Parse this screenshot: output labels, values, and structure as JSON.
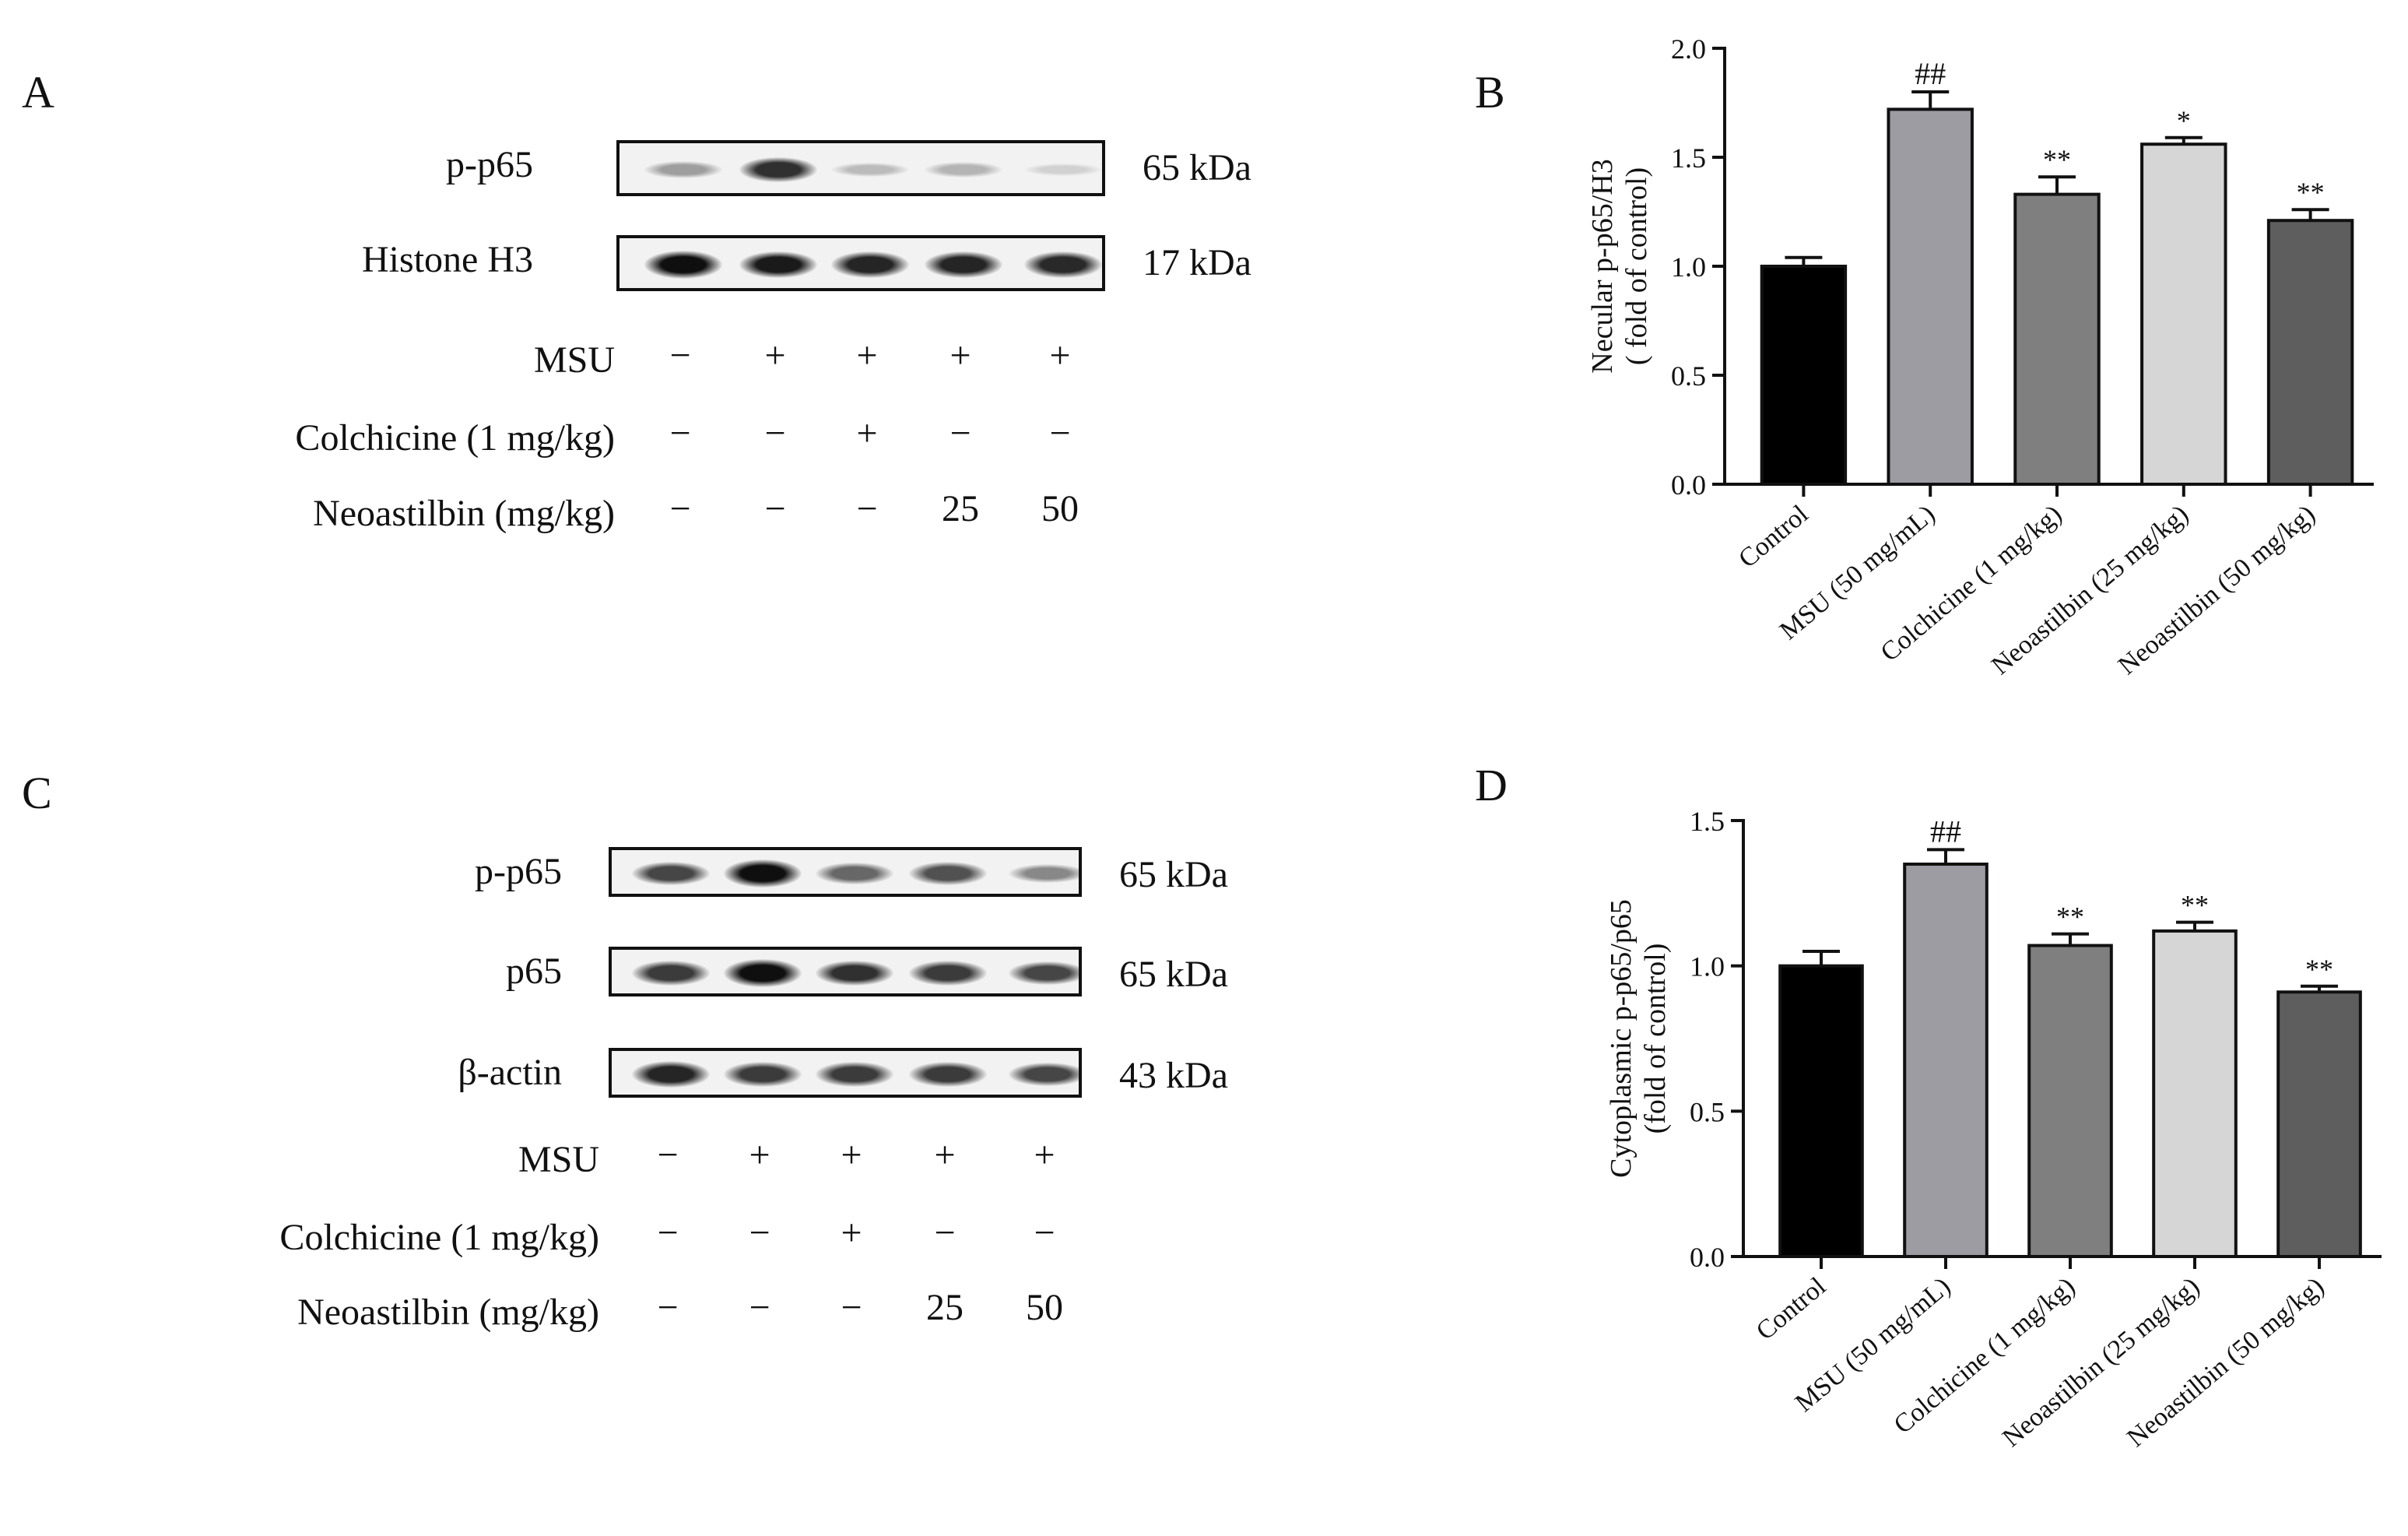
{
  "panels": {
    "A": {
      "letter": "A",
      "blots": [
        {
          "label": "p-p65",
          "kda": "65 kDa",
          "band_intensity": [
            0.35,
            0.85,
            0.22,
            0.25,
            0.12
          ]
        },
        {
          "label": "Histone H3",
          "kda": "17 kDa",
          "band_intensity": [
            1.0,
            0.95,
            0.9,
            0.9,
            0.88
          ]
        }
      ],
      "conditions": [
        {
          "label": "MSU",
          "marks": [
            "−",
            "+",
            "+",
            "+",
            "+"
          ]
        },
        {
          "label": "Colchicine (1 mg/kg)",
          "marks": [
            "−",
            "−",
            "+",
            "−",
            "−"
          ]
        },
        {
          "label": "Neoastilbin (mg/kg)",
          "marks": [
            "−",
            "−",
            "−",
            "25",
            "50"
          ]
        }
      ]
    },
    "C": {
      "letter": "C",
      "blots": [
        {
          "label": "p-p65",
          "kda": "65 kDa",
          "band_intensity": [
            0.75,
            1.0,
            0.6,
            0.7,
            0.45
          ]
        },
        {
          "label": "p65",
          "kda": "65 kDa",
          "band_intensity": [
            0.8,
            1.0,
            0.85,
            0.8,
            0.75
          ]
        },
        {
          "label": "β-actin",
          "kda": "43 kDa",
          "band_intensity": [
            0.9,
            0.8,
            0.8,
            0.8,
            0.75
          ]
        }
      ],
      "conditions": [
        {
          "label": "MSU",
          "marks": [
            "−",
            "+",
            "+",
            "+",
            "+"
          ]
        },
        {
          "label": "Colchicine (1 mg/kg)",
          "marks": [
            "−",
            "−",
            "+",
            "−",
            "−"
          ]
        },
        {
          "label": "Neoastilbin (mg/kg)",
          "marks": [
            "−",
            "−",
            "−",
            "25",
            "50"
          ]
        }
      ]
    }
  },
  "chart_data": [
    {
      "letter": "B",
      "type": "bar",
      "ylabel_lines": [
        "Necular p-p65/H3",
        "( fold of control)"
      ],
      "categories": [
        "Control",
        "MSU (50 mg/mL)",
        "Colchicine (1 mg/kg)",
        "Neoastilbin (25 mg/kg)",
        "Neoastilbin (50 mg/kg)"
      ],
      "values": [
        1.0,
        1.72,
        1.33,
        1.56,
        1.21
      ],
      "errors": [
        0.04,
        0.08,
        0.08,
        0.03,
        0.05
      ],
      "significance": [
        "",
        "##",
        "**",
        "*",
        "**"
      ],
      "colors": [
        "#000000",
        "#9d9ca3",
        "#7f7f7f",
        "#d6d6d6",
        "#5e5e5e"
      ],
      "ylim": [
        0,
        2.0
      ],
      "yticks": [
        "0.0",
        "0.5",
        "1.0",
        "1.5",
        "2.0"
      ]
    },
    {
      "letter": "D",
      "type": "bar",
      "ylabel_lines": [
        "Cytoplasmic p-p65/p65",
        "(fold of control)"
      ],
      "categories": [
        "Control",
        "MSU (50 mg/mL)",
        "Colchicine (1 mg/kg)",
        "Neoastilbin (25 mg/kg)",
        "Neoastilbin (50 mg/kg)"
      ],
      "values": [
        1.0,
        1.35,
        1.07,
        1.12,
        0.91
      ],
      "errors": [
        0.05,
        0.05,
        0.04,
        0.03,
        0.02
      ],
      "significance": [
        "",
        "##",
        "**",
        "**",
        "**"
      ],
      "colors": [
        "#000000",
        "#9d9ca3",
        "#7f7f7f",
        "#d6d6d6",
        "#5e5e5e"
      ],
      "ylim": [
        0,
        1.5
      ],
      "yticks": [
        "0.0",
        "0.5",
        "1.0",
        "1.5"
      ]
    }
  ]
}
